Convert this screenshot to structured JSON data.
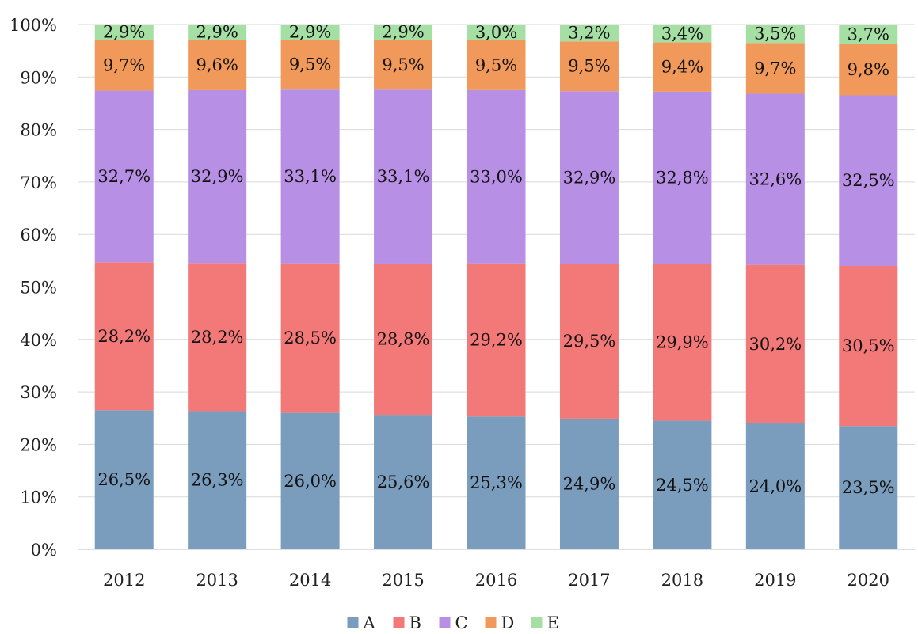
{
  "chart_data": {
    "type": "bar",
    "stacked": true,
    "normalized": true,
    "categories": [
      "2012",
      "2013",
      "2014",
      "2015",
      "2016",
      "2017",
      "2018",
      "2019",
      "2020"
    ],
    "series": [
      {
        "name": "A",
        "color": "#7a9cbd",
        "values": [
          26.5,
          26.3,
          26.0,
          25.6,
          25.3,
          24.9,
          24.5,
          24.0,
          23.5
        ],
        "labels": [
          "26,5%",
          "26,3%",
          "26,0%",
          "25,6%",
          "25,3%",
          "24,9%",
          "24,5%",
          "24,0%",
          "23,5%"
        ]
      },
      {
        "name": "B",
        "color": "#f37878",
        "values": [
          28.2,
          28.2,
          28.5,
          28.8,
          29.2,
          29.5,
          29.9,
          30.2,
          30.5
        ],
        "labels": [
          "28,2%",
          "28,2%",
          "28,5%",
          "28,8%",
          "29,2%",
          "29,5%",
          "29,9%",
          "30,2%",
          "30,5%"
        ]
      },
      {
        "name": "C",
        "color": "#b78fe5",
        "values": [
          32.7,
          32.9,
          33.1,
          33.1,
          33.0,
          32.9,
          32.8,
          32.6,
          32.5
        ],
        "labels": [
          "32,7%",
          "32,9%",
          "33,1%",
          "33,1%",
          "33,0%",
          "32,9%",
          "32,8%",
          "32,6%",
          "32,5%"
        ]
      },
      {
        "name": "D",
        "color": "#f0995b",
        "values": [
          9.7,
          9.6,
          9.5,
          9.5,
          9.5,
          9.5,
          9.4,
          9.7,
          9.8
        ],
        "labels": [
          "9,7%",
          "9,6%",
          "9,5%",
          "9,5%",
          "9,5%",
          "9,5%",
          "9,4%",
          "9,7%",
          "9,8%"
        ]
      },
      {
        "name": "E",
        "color": "#a5dfa3",
        "values": [
          2.9,
          2.9,
          2.9,
          2.9,
          3.0,
          3.2,
          3.4,
          3.5,
          3.7
        ],
        "labels": [
          "2,9%",
          "2,9%",
          "2,9%",
          "2,9%",
          "3,0%",
          "3,2%",
          "3,4%",
          "3,5%",
          "3,7%"
        ]
      }
    ],
    "yticks": [
      "0%",
      "10%",
      "20%",
      "30%",
      "40%",
      "50%",
      "60%",
      "70%",
      "80%",
      "90%",
      "100%"
    ],
    "ylim": [
      0,
      100
    ],
    "grid": true,
    "legend": "bottom-center"
  }
}
